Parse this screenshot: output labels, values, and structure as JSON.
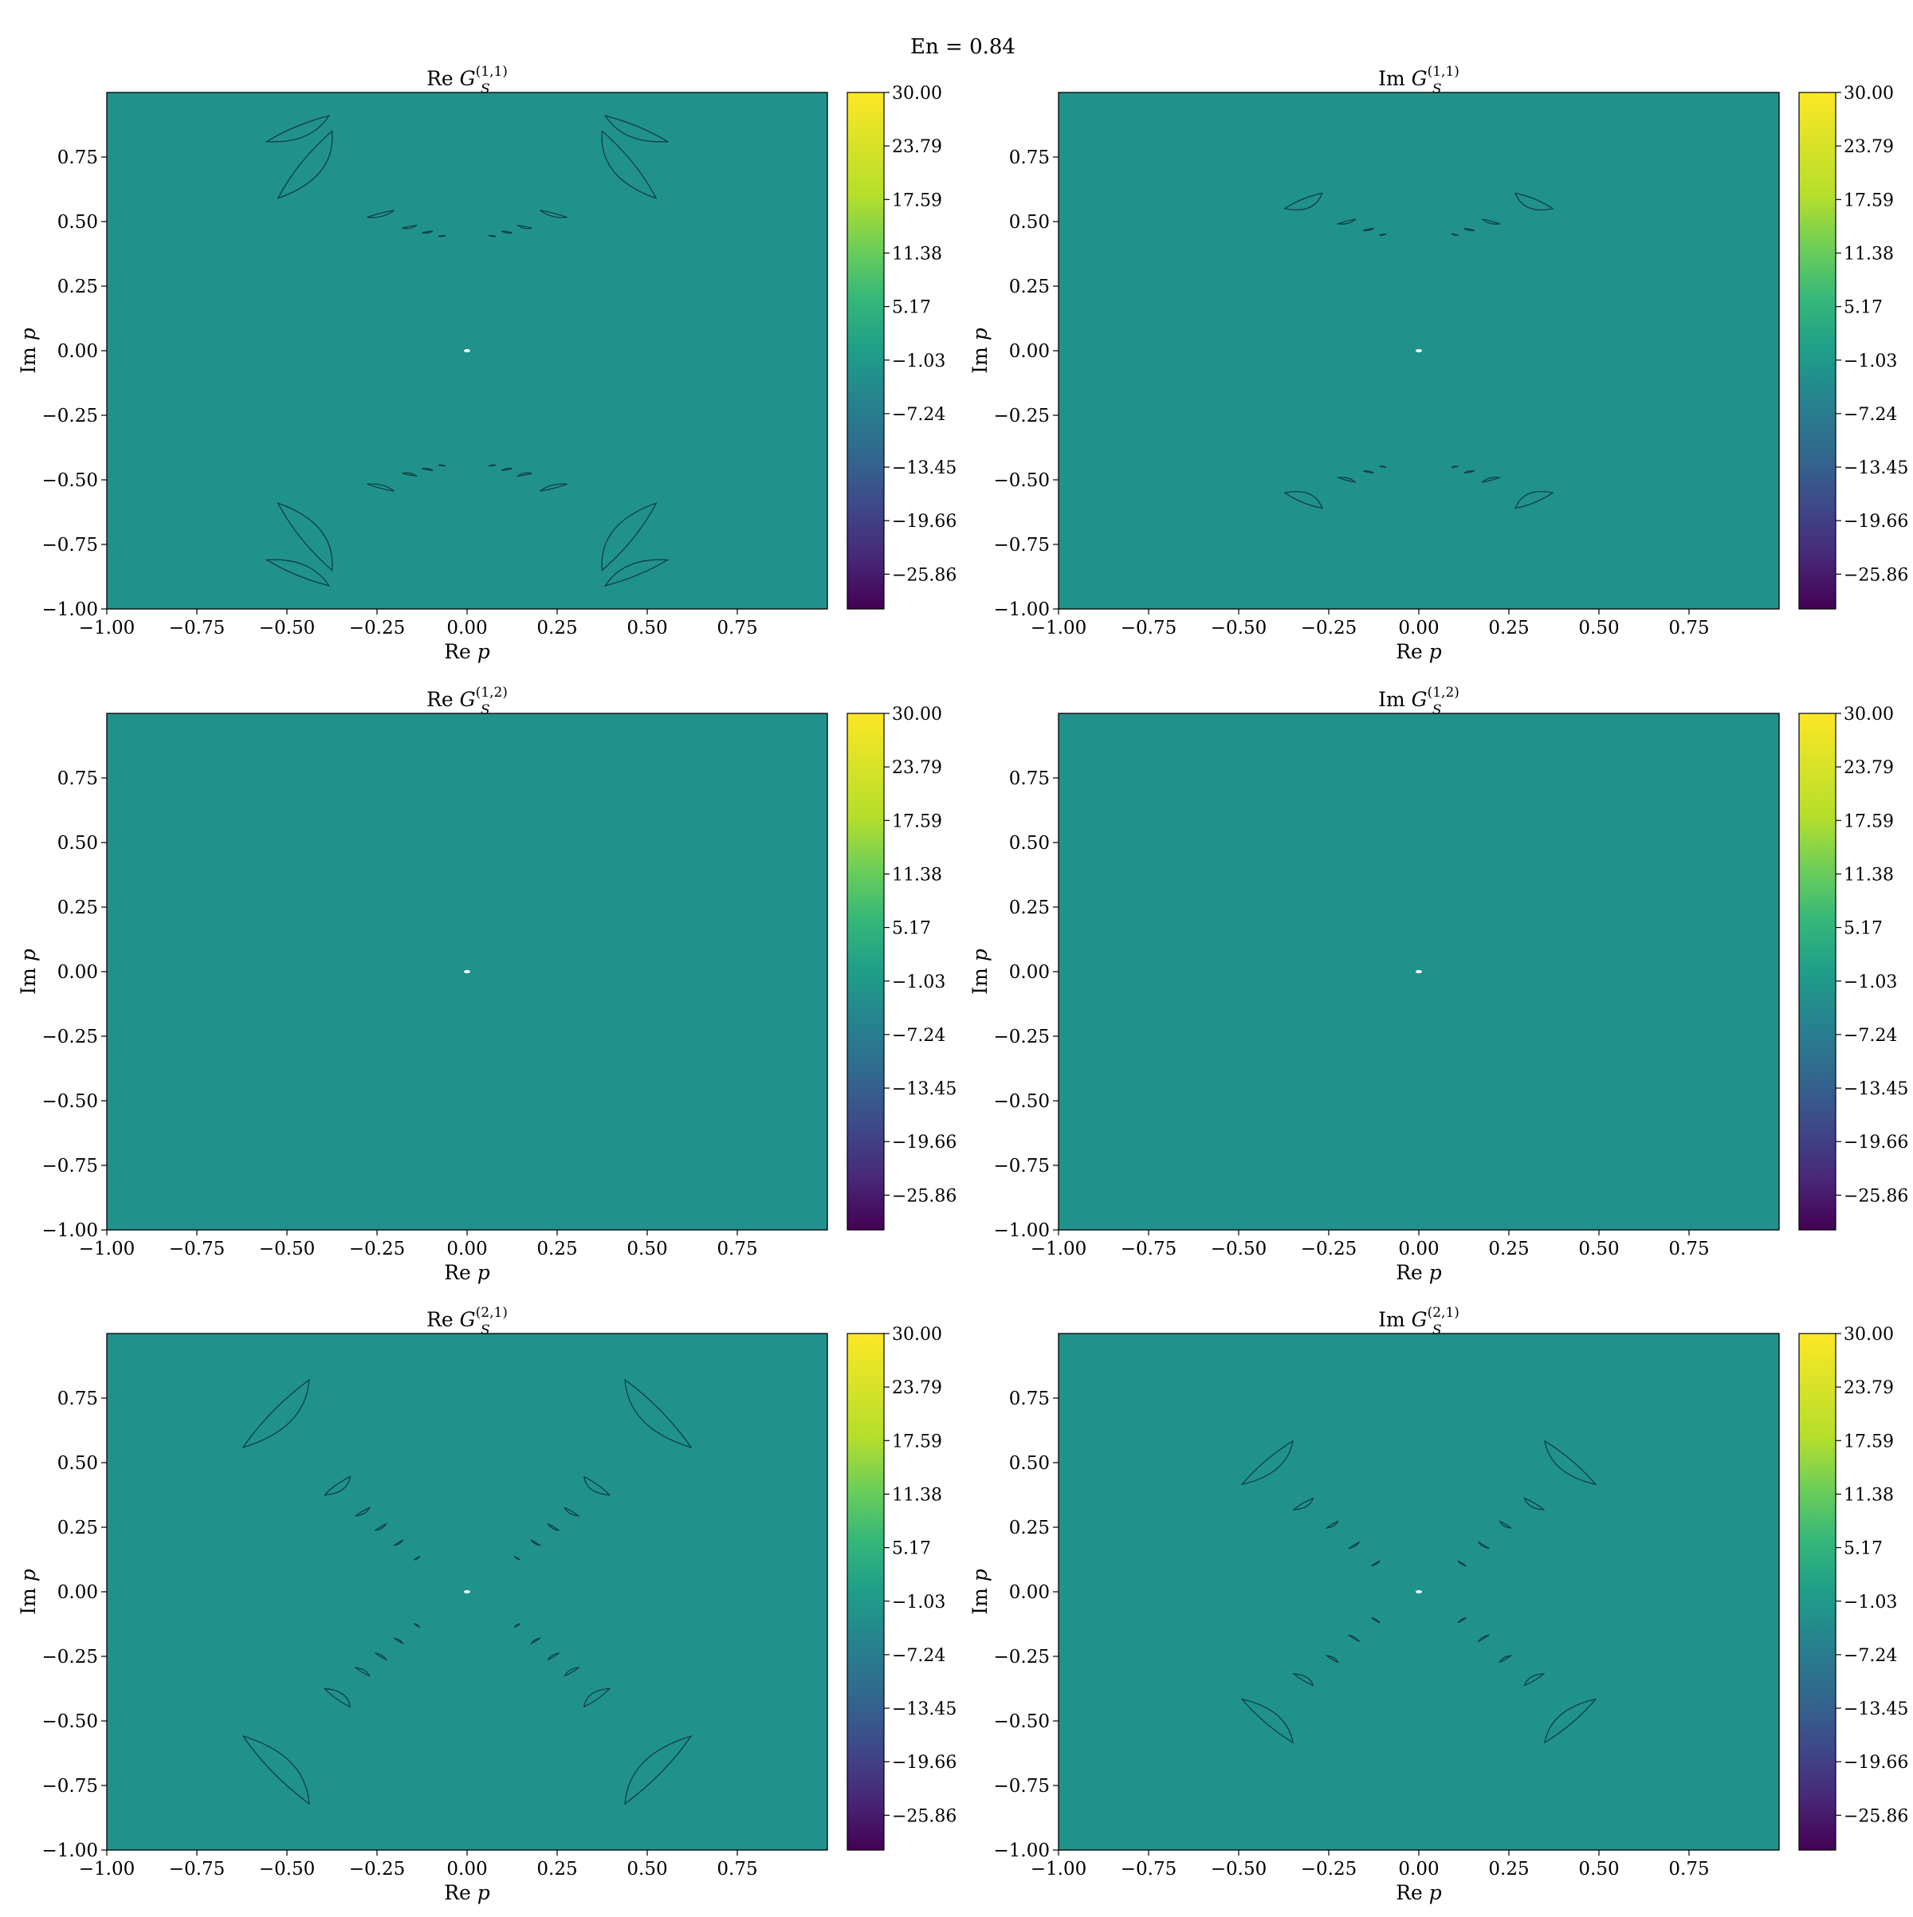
{
  "figure": {
    "title": "En = 0.84"
  },
  "chart_data": [
    {
      "type": "heatmap",
      "panel": "row1-left",
      "title": {
        "prefix": "Re ",
        "symbol": "G",
        "sub": "S",
        "sup": "(1,1)"
      },
      "xlabel": {
        "prefix": "Re ",
        "symbol": "p"
      },
      "ylabel": {
        "prefix": "Im ",
        "symbol": "p"
      },
      "xlim": [
        -1.0,
        1.0
      ],
      "ylim": [
        -1.0,
        1.0
      ],
      "xticks": [
        "−1.00",
        "−0.75",
        "−0.50",
        "−0.25",
        "0.00",
        "0.25",
        "0.50",
        "0.75"
      ],
      "yticks": [
        "−1.00",
        "−0.75",
        "−0.50",
        "−0.25",
        "0.00",
        "0.25",
        "0.50",
        "0.75"
      ],
      "background_color": "#21918c",
      "contour_groups": "arc",
      "colorbar": {
        "vmin": -30.0,
        "vmax": 30.0,
        "ticks": [
          "30.00",
          "23.79",
          "17.59",
          "11.38",
          "5.17",
          "−1.03",
          "−7.24",
          "−13.45",
          "−19.66",
          "−25.86"
        ]
      }
    },
    {
      "type": "heatmap",
      "panel": "row1-right",
      "title": {
        "prefix": "Im ",
        "symbol": "G",
        "sub": "S",
        "sup": "(1,1)"
      },
      "xlabel": {
        "prefix": "Re ",
        "symbol": "p"
      },
      "ylabel": {
        "prefix": "Im ",
        "symbol": "p"
      },
      "xlim": [
        -1.0,
        1.0
      ],
      "ylim": [
        -1.0,
        1.0
      ],
      "xticks": [
        "−1.00",
        "−0.75",
        "−0.50",
        "−0.25",
        "0.00",
        "0.25",
        "0.50",
        "0.75"
      ],
      "yticks": [
        "−1.00",
        "−0.75",
        "−0.50",
        "−0.25",
        "0.00",
        "0.25",
        "0.50",
        "0.75"
      ],
      "background_color": "#21918c",
      "contour_groups": "arc-small",
      "colorbar": {
        "vmin": -30.0,
        "vmax": 30.0,
        "ticks": [
          "30.00",
          "23.79",
          "17.59",
          "11.38",
          "5.17",
          "−1.03",
          "−7.24",
          "−13.45",
          "−19.66",
          "−25.86"
        ]
      }
    },
    {
      "type": "heatmap",
      "panel": "row2-left",
      "title": {
        "prefix": "Re ",
        "symbol": "G",
        "sub": "S",
        "sup": "(1,2)"
      },
      "xlabel": {
        "prefix": "Re ",
        "symbol": "p"
      },
      "ylabel": {
        "prefix": "Im ",
        "symbol": "p"
      },
      "xlim": [
        -1.0,
        1.0
      ],
      "ylim": [
        -1.0,
        1.0
      ],
      "xticks": [
        "−1.00",
        "−0.75",
        "−0.50",
        "−0.25",
        "0.00",
        "0.25",
        "0.50",
        "0.75"
      ],
      "yticks": [
        "−1.00",
        "−0.75",
        "−0.50",
        "−0.25",
        "0.00",
        "0.25",
        "0.50",
        "0.75"
      ],
      "background_color": "#21918c",
      "contour_groups": "none",
      "colorbar": {
        "vmin": -30.0,
        "vmax": 30.0,
        "ticks": [
          "30.00",
          "23.79",
          "17.59",
          "11.38",
          "5.17",
          "−1.03",
          "−7.24",
          "−13.45",
          "−19.66",
          "−25.86"
        ]
      }
    },
    {
      "type": "heatmap",
      "panel": "row2-right",
      "title": {
        "prefix": "Im ",
        "symbol": "G",
        "sub": "S",
        "sup": "(1,2)"
      },
      "xlabel": {
        "prefix": "Re ",
        "symbol": "p"
      },
      "ylabel": {
        "prefix": "Im ",
        "symbol": "p"
      },
      "xlim": [
        -1.0,
        1.0
      ],
      "ylim": [
        -1.0,
        1.0
      ],
      "xticks": [
        "−1.00",
        "−0.75",
        "−0.50",
        "−0.25",
        "0.00",
        "0.25",
        "0.50",
        "0.75"
      ],
      "yticks": [
        "−1.00",
        "−0.75",
        "−0.50",
        "−0.25",
        "0.00",
        "0.25",
        "0.50",
        "0.75"
      ],
      "background_color": "#21918c",
      "contour_groups": "none",
      "colorbar": {
        "vmin": -30.0,
        "vmax": 30.0,
        "ticks": [
          "30.00",
          "23.79",
          "17.59",
          "11.38",
          "5.17",
          "−1.03",
          "−7.24",
          "−13.45",
          "−19.66",
          "−25.86"
        ]
      }
    },
    {
      "type": "heatmap",
      "panel": "row3-left",
      "title": {
        "prefix": "Re ",
        "symbol": "G",
        "sub": "S",
        "sup": "(2,1)"
      },
      "xlabel": {
        "prefix": "Re ",
        "symbol": "p"
      },
      "ylabel": {
        "prefix": "Im ",
        "symbol": "p"
      },
      "xlim": [
        -1.0,
        1.0
      ],
      "ylim": [
        -1.0,
        1.0
      ],
      "xticks": [
        "−1.00",
        "−0.75",
        "−0.50",
        "−0.25",
        "0.00",
        "0.25",
        "0.50",
        "0.75"
      ],
      "yticks": [
        "−1.00",
        "−0.75",
        "−0.50",
        "−0.25",
        "0.00",
        "0.25",
        "0.50",
        "0.75"
      ],
      "background_color": "#21918c",
      "contour_groups": "diagonal",
      "colorbar": {
        "vmin": -30.0,
        "vmax": 30.0,
        "ticks": [
          "30.00",
          "23.79",
          "17.59",
          "11.38",
          "5.17",
          "−1.03",
          "−7.24",
          "−13.45",
          "−19.66",
          "−25.86"
        ]
      }
    },
    {
      "type": "heatmap",
      "panel": "row3-right",
      "title": {
        "prefix": "Im ",
        "symbol": "G",
        "sub": "S",
        "sup": "(2,1)"
      },
      "xlabel": {
        "prefix": "Re ",
        "symbol": "p"
      },
      "ylabel": {
        "prefix": "Im ",
        "symbol": "p"
      },
      "xlim": [
        -1.0,
        1.0
      ],
      "ylim": [
        -1.0,
        1.0
      ],
      "xticks": [
        "−1.00",
        "−0.75",
        "−0.50",
        "−0.25",
        "0.00",
        "0.25",
        "0.50",
        "0.75"
      ],
      "yticks": [
        "−1.00",
        "−0.75",
        "−0.50",
        "−0.25",
        "0.00",
        "0.25",
        "0.50",
        "0.75"
      ],
      "background_color": "#21918c",
      "contour_groups": "diagonal-small",
      "colorbar": {
        "vmin": -30.0,
        "vmax": 30.0,
        "ticks": [
          "30.00",
          "23.79",
          "17.59",
          "11.38",
          "5.17",
          "−1.03",
          "−7.24",
          "−13.45",
          "−19.66",
          "−25.86"
        ]
      }
    }
  ]
}
